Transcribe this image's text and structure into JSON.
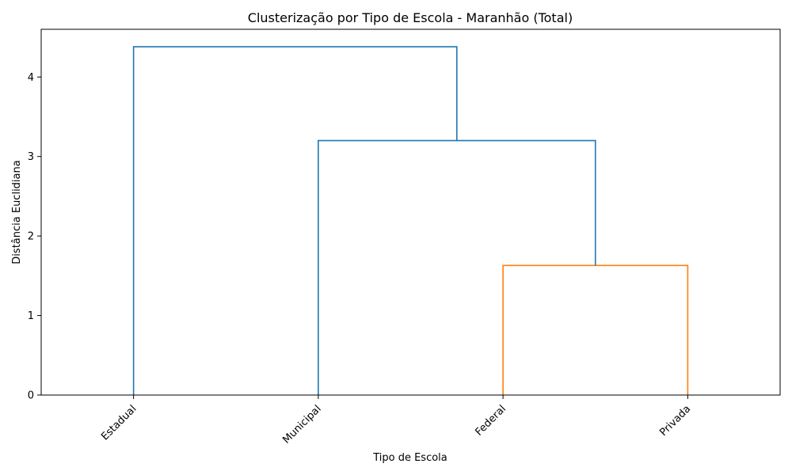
{
  "chart_data": {
    "type": "dendrogram",
    "title": "Clusterização por Tipo de Escola - Maranhão (Total)",
    "xlabel": "Tipo de Escola",
    "ylabel": "Distância Euclidiana",
    "leaves": [
      "Estadual",
      "Municipal",
      "Federal",
      "Privada"
    ],
    "ylim": [
      0,
      4.6
    ],
    "yticks": [
      0,
      1,
      2,
      3,
      4
    ],
    "merges": [
      {
        "left": "Federal",
        "right": "Privada",
        "height": 1.63,
        "color": "#ff7f0e"
      },
      {
        "left": "Municipal",
        "right": "Federal + Privada",
        "height": 3.2,
        "color": "#1f77b4"
      },
      {
        "left": "Estadual",
        "right": "Municipal + Federal + Privada",
        "height": 4.38,
        "color": "#1f77b4"
      }
    ]
  }
}
